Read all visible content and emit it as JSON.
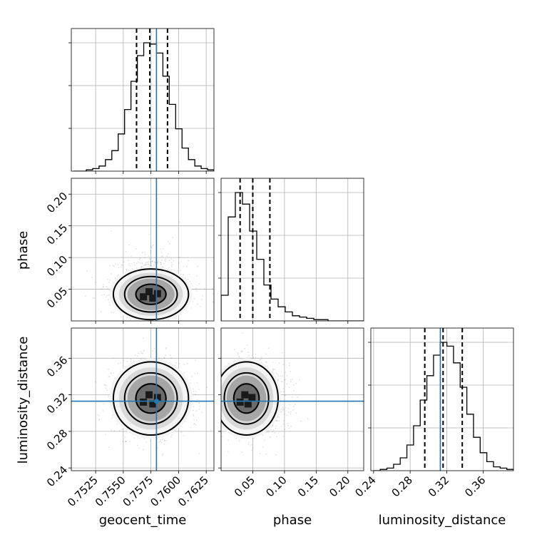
{
  "chart_data": {
    "type": "corner",
    "colors": {
      "truth": "#1f77b4",
      "histogram": "#000000",
      "grid": "#b0b0b0"
    },
    "parameters": [
      {
        "name": "geocent_time",
        "label": "geocent_time",
        "range": [
          0.7503,
          0.7632
        ],
        "ticks": [
          "0.7525",
          "0.7550",
          "0.7575",
          "0.7600",
          "0.7625"
        ],
        "tick_values": [
          0.7525,
          0.755,
          0.7575,
          0.76,
          0.7625
        ],
        "truth": 0.758,
        "quantiles": [
          0.7562,
          0.7574,
          0.759
        ],
        "mean": 0.7575,
        "sd": 0.0017,
        "hist_bins": [
          0.7505,
          0.7632
        ],
        "hist_counts": [
          0,
          0,
          1,
          2,
          4,
          9,
          16,
          29,
          48,
          70,
          90,
          100,
          99,
          92,
          74,
          52,
          33,
          18,
          9,
          4,
          2,
          1
        ]
      },
      {
        "name": "phase",
        "label": "phase",
        "range": [
          0.0,
          0.225
        ],
        "ticks": [
          "0.05",
          "0.10",
          "0.15",
          "0.20"
        ],
        "tick_values": [
          0.05,
          0.1,
          0.15,
          0.2
        ],
        "truth": null,
        "quantiles": [
          0.03,
          0.05,
          0.077
        ],
        "mean": 0.055,
        "sd": 0.025,
        "hist_bins": [
          0.0,
          0.225
        ],
        "hist_counts": [
          20,
          81,
          100,
          91,
          70,
          48,
          28,
          17,
          11,
          7,
          4,
          3,
          2,
          1,
          1,
          0,
          0,
          0,
          0,
          0
        ]
      },
      {
        "name": "luminosity_distance",
        "label": "luminosity_distance",
        "range": [
          0.237,
          0.393
        ],
        "ticks": [
          "0.24",
          "0.28",
          "0.32",
          "0.36"
        ],
        "tick_values": [
          0.24,
          0.28,
          0.32,
          0.36
        ],
        "truth": 0.313,
        "quantiles": [
          0.296,
          0.316,
          0.337
        ],
        "mean": 0.316,
        "sd": 0.02,
        "hist_bins": [
          0.24,
          0.393
        ],
        "hist_counts": [
          0,
          1,
          2,
          5,
          10,
          20,
          35,
          55,
          74,
          90,
          100,
          97,
          84,
          65,
          44,
          26,
          14,
          7,
          3,
          2,
          1
        ]
      }
    ],
    "panels": [
      {
        "row": 0,
        "col": 0,
        "type": "histogram"
      },
      {
        "row": 1,
        "col": 0,
        "type": "2d-density"
      },
      {
        "row": 1,
        "col": 1,
        "type": "histogram"
      },
      {
        "row": 2,
        "col": 0,
        "type": "2d-density"
      },
      {
        "row": 2,
        "col": 1,
        "type": "2d-density"
      },
      {
        "row": 2,
        "col": 2,
        "type": "histogram"
      }
    ],
    "grid": true
  }
}
